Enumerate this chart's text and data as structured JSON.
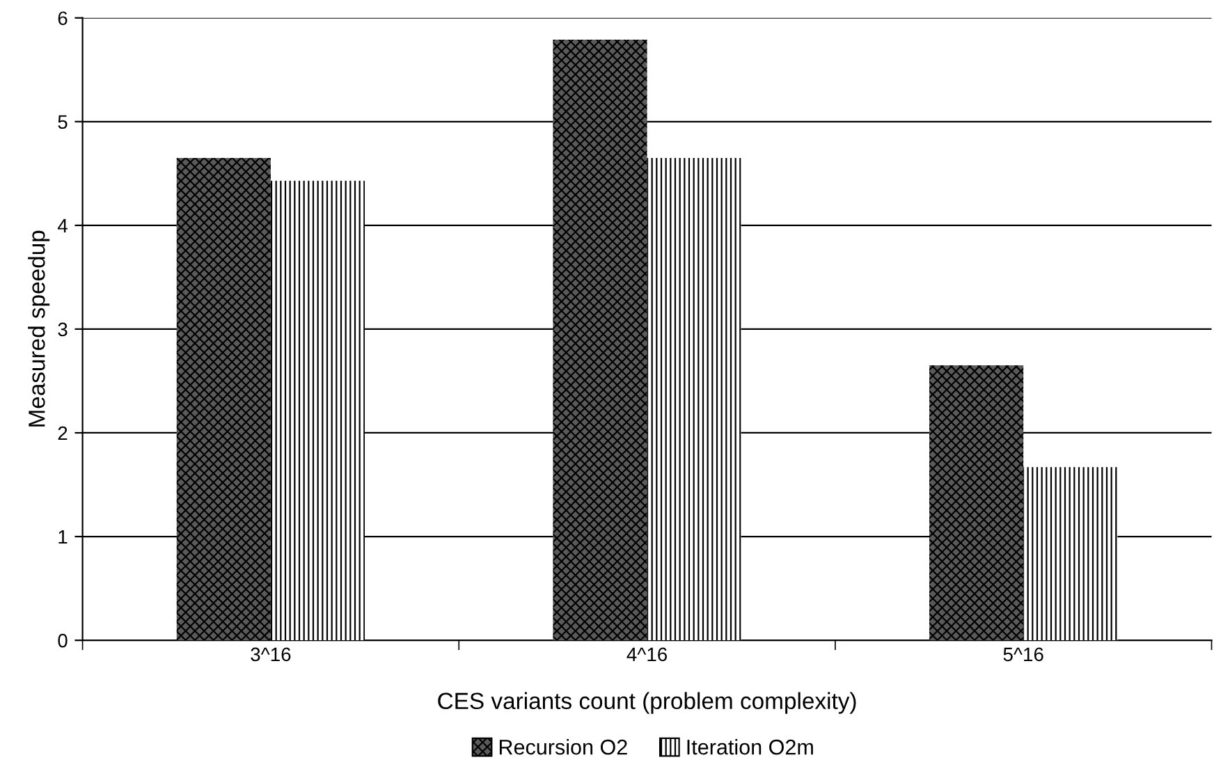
{
  "chart_data": {
    "type": "bar",
    "xlabel": "CES variants count (problem complexity)",
    "ylabel": "Measured speedup",
    "categories": [
      "3^16",
      "4^16",
      "5^16"
    ],
    "series": [
      {
        "name": "Recursion O2",
        "color": "#5a5a5a",
        "values": [
          4.65,
          5.79,
          2.65
        ]
      },
      {
        "name": "Iteration O2m",
        "color": "#ffffff",
        "values": [
          4.43,
          4.65,
          1.67
        ]
      }
    ],
    "ylim": [
      0,
      6
    ],
    "yticks": [
      0,
      1,
      2,
      3,
      4,
      5,
      6
    ],
    "grid": "y",
    "legend": "bottom"
  }
}
